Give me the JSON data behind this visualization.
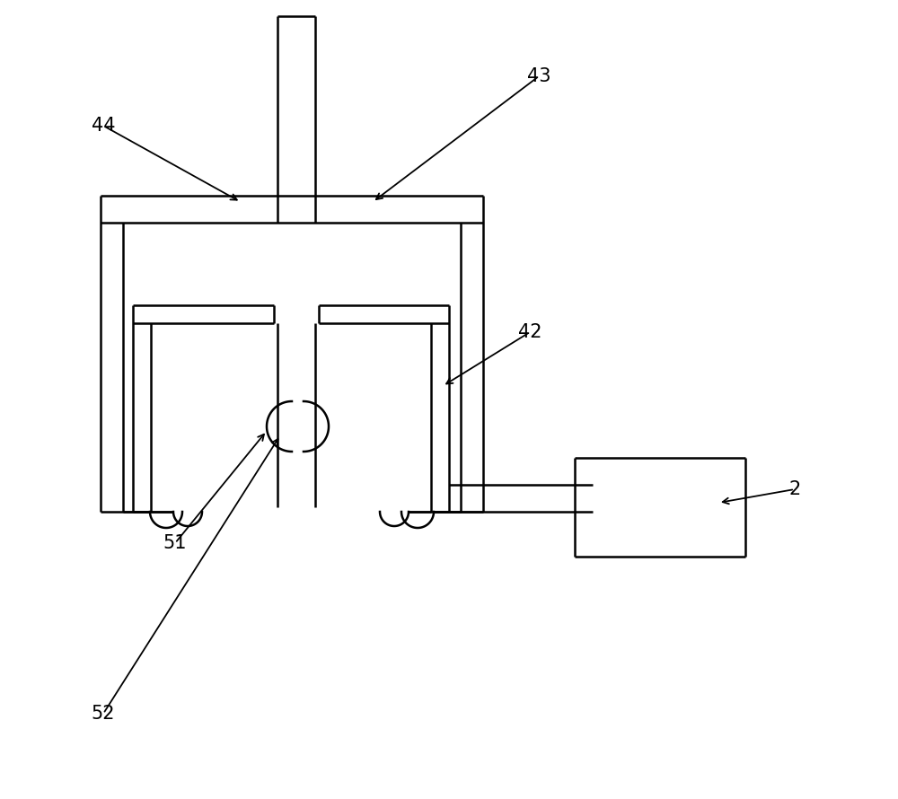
{
  "bg_color": "#ffffff",
  "line_color": "#000000",
  "lw": 1.8,
  "fig_width": 10.0,
  "fig_height": 8.9
}
